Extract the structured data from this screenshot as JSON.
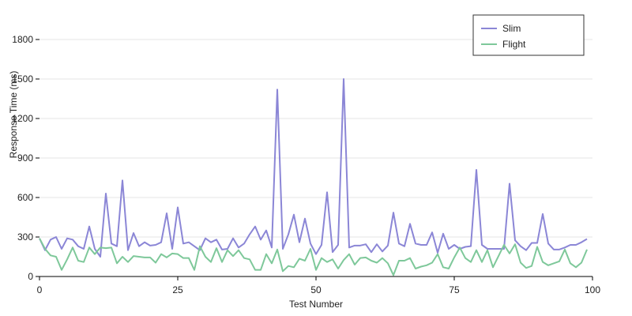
{
  "chart_data": {
    "type": "line",
    "title": "",
    "xlabel": "Test Number",
    "ylabel": "Response Time (ms)",
    "xlim": [
      0,
      100
    ],
    "ylim": [
      0,
      1800
    ],
    "x_ticks": [
      "0",
      "25",
      "50",
      "75",
      "100"
    ],
    "y_ticks": [
      "0",
      "300",
      "600",
      "900",
      "1200",
      "1500",
      "1800"
    ],
    "grid": "horizontal",
    "legend_position": "top-right",
    "series": [
      {
        "name": "Slim",
        "color": "#8b86d6",
        "x": [
          0,
          1,
          2,
          3,
          4,
          5,
          6,
          7,
          8,
          9,
          10,
          11,
          12,
          13,
          14,
          15,
          16,
          17,
          18,
          19,
          20,
          21,
          22,
          23,
          24,
          25,
          26,
          27,
          28,
          29,
          30,
          31,
          32,
          33,
          34,
          35,
          36,
          37,
          38,
          39,
          40,
          41,
          42,
          43,
          44,
          45,
          46,
          47,
          48,
          49,
          50,
          51,
          52,
          53,
          54,
          55,
          56,
          57,
          58,
          59,
          60,
          61,
          62,
          63,
          64,
          65,
          66,
          67,
          68,
          69,
          70,
          71,
          72,
          73,
          74,
          75,
          76,
          77,
          78,
          79,
          80,
          81,
          82,
          83,
          84,
          85,
          86,
          87,
          88,
          89,
          90,
          91,
          92,
          93,
          94,
          95,
          96,
          97,
          98,
          99
        ],
        "values": [
          290,
          200,
          280,
          300,
          210,
          290,
          280,
          230,
          210,
          380,
          210,
          150,
          630,
          250,
          230,
          730,
          200,
          330,
          230,
          260,
          235,
          240,
          260,
          480,
          210,
          525,
          250,
          260,
          230,
          200,
          290,
          260,
          280,
          205,
          210,
          290,
          220,
          250,
          320,
          380,
          280,
          350,
          220,
          1420,
          210,
          320,
          470,
          260,
          440,
          250,
          170,
          240,
          640,
          185,
          240,
          1500,
          220,
          235,
          235,
          245,
          185,
          245,
          190,
          235,
          485,
          250,
          230,
          400,
          250,
          240,
          240,
          335,
          180,
          325,
          210,
          240,
          210,
          225,
          230,
          810,
          240,
          210,
          210,
          210,
          210,
          705,
          275,
          230,
          200,
          255,
          255,
          475,
          250,
          205,
          205,
          220,
          240,
          240,
          260,
          285
        ]
      },
      {
        "name": "Flight",
        "color": "#7ec89a",
        "x": [
          0,
          1,
          2,
          3,
          4,
          5,
          6,
          7,
          8,
          9,
          10,
          11,
          12,
          13,
          14,
          15,
          16,
          17,
          18,
          19,
          20,
          21,
          22,
          23,
          24,
          25,
          26,
          27,
          28,
          29,
          30,
          31,
          32,
          33,
          34,
          35,
          36,
          37,
          38,
          39,
          40,
          41,
          42,
          43,
          44,
          45,
          46,
          47,
          48,
          49,
          50,
          51,
          52,
          53,
          54,
          55,
          56,
          57,
          58,
          59,
          60,
          61,
          62,
          63,
          64,
          65,
          66,
          67,
          68,
          69,
          70,
          71,
          72,
          73,
          74,
          75,
          76,
          77,
          78,
          79,
          80,
          81,
          82,
          83,
          84,
          85,
          86,
          87,
          88,
          89,
          90,
          91,
          92,
          93,
          94,
          95,
          96,
          97,
          98,
          99
        ],
        "values": [
          290,
          210,
          160,
          150,
          50,
          130,
          220,
          120,
          110,
          220,
          170,
          220,
          215,
          220,
          100,
          150,
          110,
          155,
          150,
          145,
          145,
          105,
          170,
          145,
          175,
          170,
          140,
          140,
          50,
          230,
          150,
          110,
          215,
          110,
          200,
          155,
          200,
          140,
          130,
          50,
          50,
          170,
          100,
          205,
          40,
          80,
          70,
          135,
          120,
          210,
          50,
          140,
          110,
          130,
          60,
          125,
          170,
          90,
          140,
          145,
          120,
          105,
          140,
          100,
          10,
          120,
          120,
          140,
          60,
          75,
          85,
          105,
          170,
          70,
          60,
          145,
          220,
          140,
          110,
          200,
          110,
          200,
          70,
          155,
          240,
          175,
          245,
          105,
          65,
          80,
          225,
          110,
          85,
          100,
          115,
          205,
          100,
          70,
          105,
          205
        ]
      }
    ]
  }
}
